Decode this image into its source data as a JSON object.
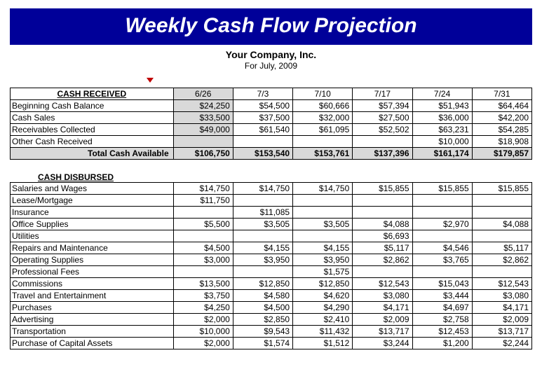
{
  "title": "Weekly Cash Flow Projection",
  "company": "Your Company, Inc.",
  "period": "For July, 2009",
  "colors": {
    "title_bg": "#000099",
    "title_fg": "#ffffff",
    "shaded_bg": "#d9d9d9",
    "border": "#000000",
    "marker": "#c00000"
  },
  "dates": [
    "6/26",
    "7/3",
    "7/10",
    "7/17",
    "7/24",
    "7/31"
  ],
  "received": {
    "header": "CASH RECEIVED",
    "rows": [
      {
        "label": "Beginning Cash Balance",
        "vals": [
          "$24,250",
          "$54,500",
          "$60,666",
          "$57,394",
          "$51,943",
          "$64,464"
        ]
      },
      {
        "label": "Cash Sales",
        "vals": [
          "$33,500",
          "$37,500",
          "$32,000",
          "$27,500",
          "$36,000",
          "$42,200"
        ]
      },
      {
        "label": "Receivables Collected",
        "vals": [
          "$49,000",
          "$61,540",
          "$61,095",
          "$52,502",
          "$63,231",
          "$54,285"
        ]
      },
      {
        "label": "Other Cash Received",
        "vals": [
          "",
          "",
          "",
          "",
          "$10,000",
          "$18,908"
        ]
      }
    ],
    "total": {
      "label": "Total Cash Available",
      "vals": [
        "$106,750",
        "$153,540",
        "$153,761",
        "$137,396",
        "$161,174",
        "$179,857"
      ]
    }
  },
  "disbursed": {
    "header": "CASH DISBURSED",
    "rows": [
      {
        "label": "Salaries and Wages",
        "vals": [
          "$14,750",
          "$14,750",
          "$14,750",
          "$15,855",
          "$15,855",
          "$15,855"
        ]
      },
      {
        "label": "Lease/Mortgage",
        "vals": [
          "$11,750",
          "",
          "",
          "",
          "",
          ""
        ]
      },
      {
        "label": "Insurance",
        "vals": [
          "",
          "$11,085",
          "",
          "",
          "",
          ""
        ]
      },
      {
        "label": "Office Supplies",
        "vals": [
          "$5,500",
          "$3,505",
          "$3,505",
          "$4,088",
          "$2,970",
          "$4,088"
        ]
      },
      {
        "label": "Utilities",
        "vals": [
          "",
          "",
          "",
          "$6,693",
          "",
          ""
        ]
      },
      {
        "label": "Repairs and Maintenance",
        "vals": [
          "$4,500",
          "$4,155",
          "$4,155",
          "$5,117",
          "$4,546",
          "$5,117"
        ]
      },
      {
        "label": "Operating Supplies",
        "vals": [
          "$3,000",
          "$3,950",
          "$3,950",
          "$2,862",
          "$3,765",
          "$2,862"
        ]
      },
      {
        "label": "Professional Fees",
        "vals": [
          "",
          "",
          "$1,575",
          "",
          "",
          ""
        ]
      },
      {
        "label": "Commissions",
        "vals": [
          "$13,500",
          "$12,850",
          "$12,850",
          "$12,543",
          "$15,043",
          "$12,543"
        ]
      },
      {
        "label": "Travel and Entertainment",
        "vals": [
          "$3,750",
          "$4,580",
          "$4,620",
          "$3,080",
          "$3,444",
          "$3,080"
        ]
      },
      {
        "label": "Purchases",
        "vals": [
          "$4,250",
          "$4,500",
          "$4,290",
          "$4,171",
          "$4,697",
          "$4,171"
        ]
      },
      {
        "label": "Advertising",
        "vals": [
          "$2,000",
          "$2,850",
          "$2,410",
          "$2,009",
          "$2,758",
          "$2,009"
        ]
      },
      {
        "label": "Transportation",
        "vals": [
          "$10,000",
          "$9,543",
          "$11,432",
          "$13,717",
          "$12,453",
          "$13,717"
        ]
      },
      {
        "label": "Purchase of Capital Assets",
        "vals": [
          "$2,000",
          "$1,574",
          "$1,512",
          "$3,244",
          "$1,200",
          "$2,244"
        ]
      }
    ]
  }
}
